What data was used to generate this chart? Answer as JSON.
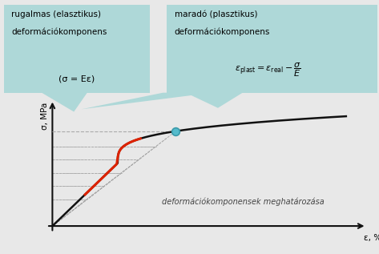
{
  "figure_bg": "#e8e8e8",
  "callout_bg": "#aed8d8",
  "callout_border": "#aed8d8",
  "left_box_title_line1": "rugalmas (elasztikus)",
  "left_box_title_line2": "deformációkomponens",
  "left_box_sub": "(σ = Eε)",
  "right_box_title_line1": "maradó (plasztikus)",
  "right_box_title_line2": "deformációkomponens",
  "center_label": "deformációkomponensek meghatározása",
  "xlabel": "ε, %",
  "ylabel": "σ, MPa",
  "curve_color": "#111111",
  "red_segment_color": "#dd2200",
  "dashed_color": "#aaaaaa",
  "dot_color": "#55bbcc",
  "dot_outline": "#3a9aaa",
  "arrow_color": "#111111",
  "text_color": "#222222"
}
